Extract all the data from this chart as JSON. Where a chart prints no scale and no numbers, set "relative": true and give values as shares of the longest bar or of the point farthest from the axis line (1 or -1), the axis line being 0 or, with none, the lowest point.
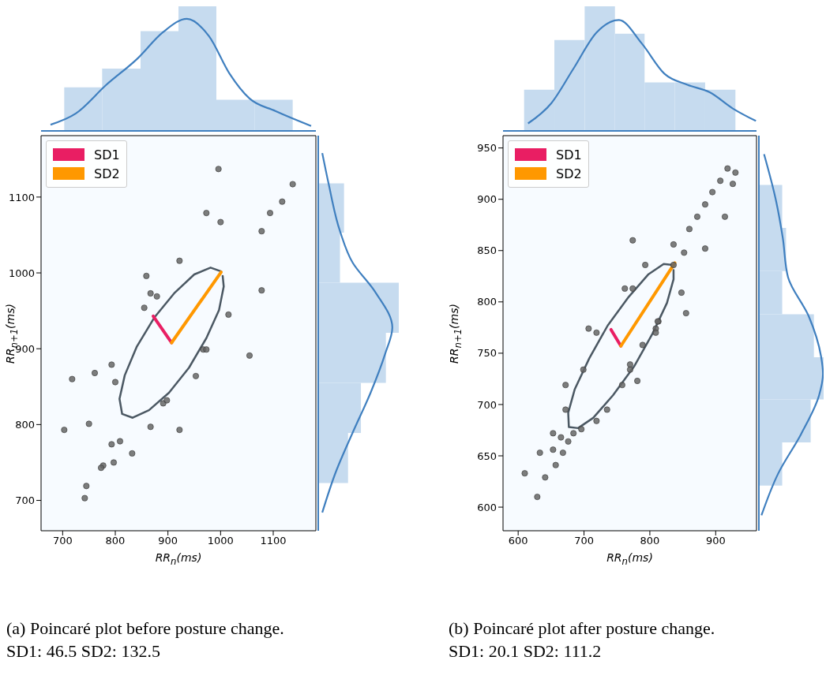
{
  "chart_data": [
    {
      "type": "scatter",
      "xlabel": "RR$_{n}$(ms)",
      "ylabel": "RR$_{n+1}$(ms)",
      "xlim": [
        659,
        1181
      ],
      "ylim": [
        660,
        1181
      ],
      "xticks": [
        700,
        800,
        900,
        1000,
        1100
      ],
      "yticks": [
        700,
        800,
        900,
        1000,
        1100
      ],
      "legend": "top left",
      "series": [
        {
          "type": "scatter",
          "marker": "circle",
          "color": "#666666",
          "x": [
            996,
            1137,
            1117,
            1094,
            973,
            1000,
            1078,
            922,
            859,
            867,
            879,
            855,
            1015,
            1078,
            967,
            973,
            1055,
            793,
            761,
            718,
            800,
            953,
            891,
            898,
            703,
            750,
            867,
            922,
            793,
            809,
            832,
            797,
            777,
            773,
            745,
            742
          ],
          "values": [
            1137,
            1117,
            1094,
            1079,
            1079,
            1067,
            1055,
            1016,
            996,
            973,
            969,
            954,
            945,
            977,
            899,
            899,
            891,
            879,
            868,
            860,
            856,
            864,
            828,
            832,
            793,
            801,
            797,
            793,
            774,
            778,
            762,
            750,
            746,
            743,
            719,
            703
          ]
        },
        {
          "type": "line",
          "marker": "none",
          "color": "#4b5863",
          "x": [
            1001,
            981,
            950,
            913,
            874,
            841,
            818,
            808,
            813,
            833,
            864,
            902,
            940,
            973,
            997,
            1006,
            1004
          ],
          "values": [
            1002,
            1007,
            998,
            974,
            941,
            903,
            865,
            834,
            814,
            809,
            819,
            842,
            875,
            914,
            951,
            982,
            996
          ]
        },
        {
          "type": "line",
          "marker": "none",
          "name": "SD1",
          "color": "#e91e63",
          "x": [
            907,
            872
          ],
          "values": [
            908,
            943
          ]
        },
        {
          "type": "line",
          "marker": "none",
          "name": "SD2",
          "color": "#ff9800",
          "x": [
            907,
            1001
          ],
          "values": [
            908,
            1001
          ]
        }
      ],
      "annotations": [
        "(a) Poincaré plot before posture change.",
        "SD1: 46.5 SD2: 132.5"
      ]
    },
    {
      "type": "histogram",
      "relative": true,
      "xlim": [
        659,
        1181
      ],
      "series": [
        {
          "type": "histogram",
          "color": "#c6dbef",
          "bins": [
            703,
            775,
            848,
            920,
            992,
            1065,
            1137
          ],
          "values": [
            0.35,
            0.5,
            0.8,
            1,
            0.25,
            0.25
          ]
        },
        {
          "type": "line",
          "color": "#3f7fbf",
          "x": [
            677,
            725,
            783,
            842,
            890,
            936,
            978,
            1017,
            1055,
            1104,
            1172
          ],
          "values": [
            0.05,
            0.14,
            0.37,
            0.58,
            0.79,
            0.9,
            0.76,
            0.46,
            0.26,
            0.16,
            0.04
          ]
        }
      ]
    },
    {
      "type": "histogram",
      "relative": true,
      "orientation": "horizontal",
      "ylim": [
        660,
        1181
      ],
      "series": [
        {
          "type": "histogram",
          "color": "#c6dbef",
          "bins": [
            723,
            789,
            855,
            921,
            987,
            1053,
            1118
          ],
          "values": [
            0.37,
            0.53,
            0.84,
            1,
            0.27,
            0.32
          ]
        },
        {
          "type": "line",
          "color": "#3f7fbf",
          "x": [
            684,
            738,
            790,
            842,
            893,
            928,
            976,
            1013,
            1055,
            1117,
            1158
          ],
          "values": [
            0.05,
            0.22,
            0.43,
            0.65,
            0.83,
            0.92,
            0.7,
            0.43,
            0.27,
            0.13,
            0.05
          ]
        }
      ]
    },
    {
      "type": "scatter",
      "xlabel": "RR$_{n}$(ms)",
      "ylabel": "RR$_{n+1}$(ms)",
      "xlim": [
        577,
        962
      ],
      "ylim": [
        577,
        962
      ],
      "xticks": [
        600,
        700,
        800,
        900
      ],
      "yticks": [
        600,
        650,
        700,
        750,
        800,
        850,
        900,
        950
      ],
      "legend": "top left",
      "series": [
        {
          "type": "scatter",
          "marker": "circle",
          "color": "#666666",
          "x": [
            918,
            930,
            926,
            907,
            895,
            884,
            872,
            914,
            860,
            836,
            852,
            884,
            774,
            793,
            836,
            762,
            774,
            848,
            855,
            813,
            812,
            809,
            809,
            707,
            719,
            789,
            770,
            770,
            781,
            758,
            699,
            672,
            672,
            735,
            719,
            696,
            684,
            676,
            665,
            653,
            668,
            633,
            653,
            657,
            641,
            610,
            629
          ],
          "values": [
            930,
            926,
            915,
            918,
            907,
            895,
            883,
            883,
            871,
            856,
            848,
            852,
            860,
            836,
            836,
            813,
            813,
            809,
            789,
            781,
            781,
            774,
            770,
            774,
            770,
            758,
            739,
            734,
            723,
            719,
            734,
            719,
            695,
            695,
            684,
            676,
            672,
            664,
            668,
            672,
            653,
            653,
            656,
            641,
            629,
            633,
            610
          ]
        },
        {
          "type": "line",
          "marker": "none",
          "color": "#4b5863",
          "x": [
            835,
            821,
            798,
            768,
            736,
            708,
            686,
            676,
            677,
            691,
            714,
            744,
            776,
            804,
            826,
            836,
            836
          ],
          "values": [
            836,
            837,
            827,
            805,
            777,
            745,
            715,
            692,
            678,
            677,
            687,
            709,
            737,
            769,
            799,
            822,
            831
          ]
        },
        {
          "type": "line",
          "marker": "none",
          "name": "SD1",
          "color": "#e91e63",
          "x": [
            756,
            741
          ],
          "values": [
            757,
            773
          ]
        },
        {
          "type": "line",
          "marker": "none",
          "name": "SD2",
          "color": "#ff9800",
          "x": [
            756,
            838
          ],
          "values": [
            757,
            838
          ]
        }
      ],
      "annotations": [
        "(b) Poincaré plot after posture change.",
        "SD1: 20.1 SD2: 111.2"
      ]
    },
    {
      "type": "histogram",
      "relative": true,
      "xlim": [
        577,
        962
      ],
      "series": [
        {
          "type": "histogram",
          "color": "#c6dbef",
          "bins": [
            609,
            655,
            701,
            747,
            792,
            838,
            884,
            930
          ],
          "values": [
            0.33,
            0.73,
            1,
            0.78,
            0.39,
            0.39,
            0.33
          ]
        },
        {
          "type": "line",
          "color": "#3f7fbf",
          "x": [
            615,
            650,
            684,
            719,
            753,
            788,
            822,
            857,
            891,
            926,
            961
          ],
          "values": [
            0.06,
            0.22,
            0.5,
            0.79,
            0.89,
            0.7,
            0.46,
            0.37,
            0.31,
            0.18,
            0.08
          ]
        }
      ]
    },
    {
      "type": "histogram",
      "relative": true,
      "orientation": "horizontal",
      "ylim": [
        577,
        962
      ],
      "series": [
        {
          "type": "histogram",
          "color": "#c6dbef",
          "bins": [
            621,
            663,
            705,
            746,
            788,
            830,
            872,
            914
          ],
          "values": [
            0.36,
            0.8,
            1,
            0.85,
            0.36,
            0.42,
            0.36
          ]
        },
        {
          "type": "line",
          "color": "#3f7fbf",
          "x": [
            592,
            633,
            671,
            709,
            730,
            747,
            786,
            824,
            862,
            900,
            944
          ],
          "values": [
            0.04,
            0.3,
            0.65,
            0.93,
            0.99,
            0.96,
            0.77,
            0.45,
            0.37,
            0.26,
            0.08
          ]
        }
      ]
    }
  ]
}
